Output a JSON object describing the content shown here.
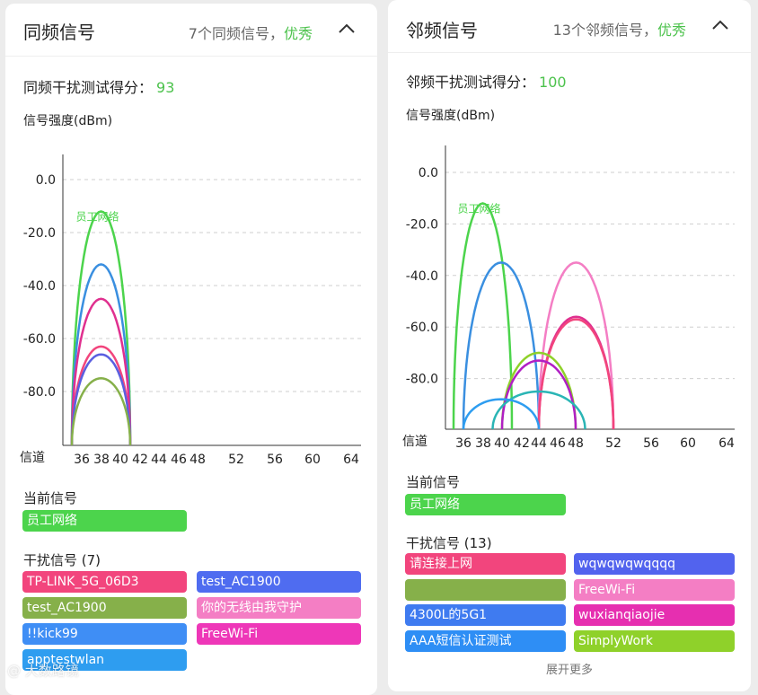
{
  "left": {
    "title": "同频信号",
    "summary_prefix": "7个同频信号，",
    "summary_rating": "优秀",
    "score_label": "同频干扰测试得分：",
    "score_value": "93",
    "current_label": "当前信号",
    "current_network": {
      "name": "员工网络",
      "color": "#4cd44c"
    },
    "interference_label": "干扰信号 (7)",
    "interference": [
      {
        "name": "TP-LINK_5G_06D3",
        "color": "#f2457d"
      },
      {
        "name": "test_AC1900",
        "color": "#4f6cf0"
      },
      {
        "name": "test_AC1900",
        "color": "#86b04a"
      },
      {
        "name": "你的无线由我守护",
        "color": "#f47ec4"
      },
      {
        "name": "!!kick99",
        "color": "#3f8ef5"
      },
      {
        "name": "FreeWi-Fi",
        "color": "#ee37b8"
      },
      {
        "name": "apptestwlan",
        "color": "#2e9df0"
      }
    ]
  },
  "right": {
    "title": "邻频信号",
    "summary_prefix": "13个邻频信号，",
    "summary_rating": "优秀",
    "score_label": "邻频干扰测试得分：",
    "score_value": "100",
    "current_label": "当前信号",
    "current_network": {
      "name": "员工网络",
      "color": "#4cd44c"
    },
    "interference_label": "干扰信号 (13)",
    "interference": [
      {
        "name": "请连接上网",
        "color": "#f2457d"
      },
      {
        "name": "wqwqwqwqqqq",
        "color": "#5263ee"
      },
      {
        "name": "",
        "color": "#86b04a"
      },
      {
        "name": "FreeWi-Fi",
        "color": "#f47ec4"
      },
      {
        "name": "4300L的5G1",
        "color": "#3f7bf0"
      },
      {
        "name": "wuxianqiaojie",
        "color": "#e62fb0"
      },
      {
        "name": "AAA短信认证测试",
        "color": "#2e8ef5"
      },
      {
        "name": "SimplyWork",
        "color": "#8fd12a"
      }
    ],
    "more_label": "展开更多"
  },
  "chart_data": [
    {
      "type": "line",
      "ylabel": "信号强度(dBm)",
      "xlabel": "信道",
      "x_ticks": [
        36,
        38,
        40,
        42,
        44,
        46,
        48,
        52,
        56,
        60,
        64
      ],
      "y_ticks": [
        0.0,
        -20.0,
        -40.0,
        -60.0,
        -80.0
      ],
      "ylim": [
        -100,
        10
      ],
      "grid": true,
      "series": [
        {
          "color": "#4cd44c",
          "center": 38,
          "width": 6,
          "peak": -12,
          "label": "员工网络"
        },
        {
          "color": "#3a8fe0",
          "center": 38,
          "width": 6,
          "peak": -32
        },
        {
          "color": "#e0308f",
          "center": 38,
          "width": 6,
          "peak": -45
        },
        {
          "color": "#f2457d",
          "center": 38,
          "width": 6,
          "peak": -63
        },
        {
          "color": "#5a5fe0",
          "center": 38,
          "width": 6,
          "peak": -66
        },
        {
          "color": "#86b04a",
          "center": 38,
          "width": 6,
          "peak": -75
        }
      ]
    },
    {
      "type": "line",
      "ylabel": "信号强度(dBm)",
      "xlabel": "信道",
      "x_ticks": [
        36,
        38,
        40,
        42,
        44,
        46,
        48,
        52,
        56,
        60,
        64
      ],
      "y_ticks": [
        0.0,
        -20.0,
        -40.0,
        -60.0,
        -80.0
      ],
      "ylim": [
        -100,
        10
      ],
      "grid": true,
      "series": [
        {
          "color": "#4cd44c",
          "center": 38,
          "width": 6,
          "peak": -12,
          "label": "员工网络"
        },
        {
          "color": "#3a8fe0",
          "center": 40,
          "width": 8,
          "peak": -35
        },
        {
          "color": "#f47ec4",
          "center": 48,
          "width": 8,
          "peak": -35
        },
        {
          "color": "#e0308f",
          "center": 48,
          "width": 8,
          "peak": -56
        },
        {
          "color": "#f2457d",
          "center": 48,
          "width": 8,
          "peak": -57
        },
        {
          "color": "#8fd12a",
          "center": 44,
          "width": 8,
          "peak": -70
        },
        {
          "color": "#b01fc4",
          "center": 44,
          "width": 8,
          "peak": -73
        },
        {
          "color": "#2ab5b5",
          "center": 44,
          "width": 10,
          "peak": -85
        },
        {
          "color": "#2e9df0",
          "center": 40,
          "width": 8,
          "peak": -88
        }
      ]
    }
  ]
}
